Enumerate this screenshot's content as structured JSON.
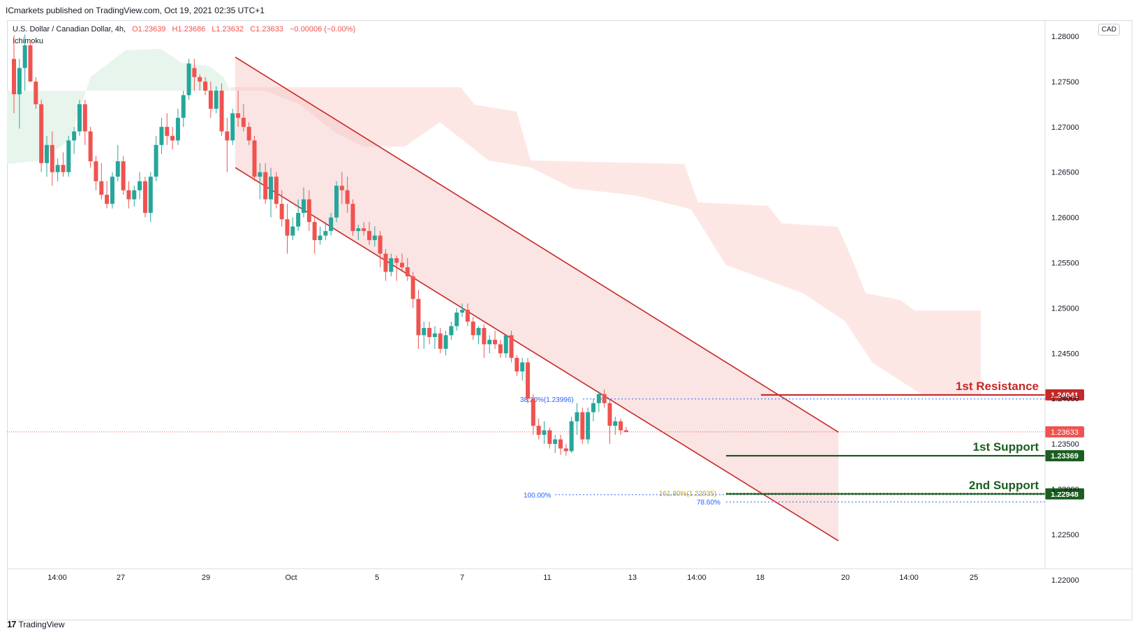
{
  "header": {
    "published": "ICmarkets published on TradingView.com, Oct 19, 2021 02:35 UTC+1"
  },
  "legend": {
    "symbol": "U.S. Dollar / Canadian Dollar, 4h,",
    "open": "O1.23639",
    "high": "H1.23686",
    "low": "L1.23632",
    "close": "C1.23633",
    "change": "−0.00006 (−0.00%)",
    "indicator": "Ichimoku"
  },
  "currency": "CAD",
  "footer": {
    "brand": "TradingView",
    "logo": "17"
  },
  "colors": {
    "bull": "#26a69a",
    "bear": "#ef5350",
    "channel": "#c62828",
    "channel_fill": "#f3c3c3",
    "cloud_bear": "#fde3e1",
    "cloud_bull": "#e6f4ea",
    "resistance": "#c62828",
    "support": "#1b5e20",
    "fib_blue": "#2962ff",
    "fib_gold": "#c49b00",
    "price_line": "#ef5350"
  },
  "chart_data": {
    "type": "candlestick",
    "timeframe": "4h",
    "ylim": [
      1.22,
      1.28
    ],
    "y_ticks": [
      "1.28000",
      "1.27500",
      "1.27000",
      "1.26500",
      "1.26000",
      "1.25500",
      "1.25000",
      "1.24500",
      "1.24000",
      "1.23500",
      "1.23000",
      "1.22500",
      "1.22000"
    ],
    "x_ticks": [
      "14:00",
      "27",
      "29",
      "Oct",
      "5",
      "7",
      "11",
      "13",
      "14:00",
      "18",
      "20",
      "14:00",
      "25"
    ],
    "grid": false,
    "candles": [
      [
        1.2775,
        1.2801,
        1.2715,
        1.2736
      ],
      [
        1.2736,
        1.2775,
        1.2698,
        1.2765
      ],
      [
        1.2765,
        1.2802,
        1.274,
        1.279
      ],
      [
        1.279,
        1.2795,
        1.275,
        1.275
      ],
      [
        1.275,
        1.2755,
        1.272,
        1.2725
      ],
      [
        1.2725,
        1.273,
        1.265,
        1.266
      ],
      [
        1.266,
        1.269,
        1.2645,
        1.268
      ],
      [
        1.268,
        1.2695,
        1.2635,
        1.265
      ],
      [
        1.265,
        1.2665,
        1.264,
        1.2658
      ],
      [
        1.2658,
        1.2672,
        1.2645,
        1.265
      ],
      [
        1.265,
        1.269,
        1.2645,
        1.2685
      ],
      [
        1.2685,
        1.27,
        1.267,
        1.2695
      ],
      [
        1.2695,
        1.273,
        1.269,
        1.2725
      ],
      [
        1.2725,
        1.273,
        1.268,
        1.2695
      ],
      [
        1.2695,
        1.27,
        1.2655,
        1.2662
      ],
      [
        1.2662,
        1.2668,
        1.263,
        1.264
      ],
      [
        1.264,
        1.266,
        1.262,
        1.2625
      ],
      [
        1.2625,
        1.264,
        1.261,
        1.2615
      ],
      [
        1.2615,
        1.265,
        1.261,
        1.2645
      ],
      [
        1.2645,
        1.268,
        1.264,
        1.2662
      ],
      [
        1.2662,
        1.2668,
        1.2625,
        1.263
      ],
      [
        1.263,
        1.264,
        1.261,
        1.262
      ],
      [
        1.262,
        1.2635,
        1.2612,
        1.263
      ],
      [
        1.263,
        1.265,
        1.262,
        1.264
      ],
      [
        1.264,
        1.2645,
        1.26,
        1.2605
      ],
      [
        1.2605,
        1.265,
        1.2595,
        1.2645
      ],
      [
        1.2645,
        1.269,
        1.264,
        1.268
      ],
      [
        1.268,
        1.271,
        1.267,
        1.27
      ],
      [
        1.27,
        1.2715,
        1.268,
        1.269
      ],
      [
        1.269,
        1.27,
        1.2675,
        1.2685
      ],
      [
        1.2685,
        1.272,
        1.268,
        1.271
      ],
      [
        1.271,
        1.274,
        1.27,
        1.2735
      ],
      [
        1.2735,
        1.2775,
        1.273,
        1.277
      ],
      [
        1.2765,
        1.2775,
        1.274,
        1.2755
      ],
      [
        1.2755,
        1.2758,
        1.274,
        1.275
      ],
      [
        1.275,
        1.2755,
        1.2735,
        1.274
      ],
      [
        1.274,
        1.275,
        1.271,
        1.272
      ],
      [
        1.272,
        1.2745,
        1.2715,
        1.274
      ],
      [
        1.274,
        1.2748,
        1.269,
        1.2695
      ],
      [
        1.2695,
        1.271,
        1.265,
        1.2685
      ],
      [
        1.2685,
        1.272,
        1.268,
        1.2715
      ],
      [
        1.2715,
        1.274,
        1.27,
        1.271
      ],
      [
        1.271,
        1.2725,
        1.2695,
        1.27
      ],
      [
        1.27,
        1.2705,
        1.268,
        1.2685
      ],
      [
        1.2685,
        1.269,
        1.264,
        1.2645
      ],
      [
        1.2645,
        1.266,
        1.262,
        1.265
      ],
      [
        1.265,
        1.266,
        1.2615,
        1.262
      ],
      [
        1.262,
        1.2655,
        1.26,
        1.2645
      ],
      [
        1.2645,
        1.265,
        1.261,
        1.2615
      ],
      [
        1.2615,
        1.263,
        1.259,
        1.2598
      ],
      [
        1.2598,
        1.2615,
        1.256,
        1.258
      ],
      [
        1.258,
        1.26,
        1.2575,
        1.259
      ],
      [
        1.259,
        1.262,
        1.2585,
        1.2605
      ],
      [
        1.2605,
        1.2633,
        1.26,
        1.262
      ],
      [
        1.262,
        1.263,
        1.2585,
        1.2595
      ],
      [
        1.2595,
        1.26,
        1.256,
        1.2575
      ],
      [
        1.2575,
        1.259,
        1.257,
        1.258
      ],
      [
        1.258,
        1.2595,
        1.2575,
        1.2585
      ],
      [
        1.2585,
        1.2605,
        1.258,
        1.26
      ],
      [
        1.26,
        1.264,
        1.2595,
        1.2635
      ],
      [
        1.2635,
        1.265,
        1.2615,
        1.263
      ],
      [
        1.263,
        1.2645,
        1.2605,
        1.2615
      ],
      [
        1.2615,
        1.262,
        1.258,
        1.2585
      ],
      [
        1.2585,
        1.2592,
        1.2575,
        1.2588
      ],
      [
        1.2588,
        1.2595,
        1.258,
        1.2585
      ],
      [
        1.2585,
        1.2595,
        1.257,
        1.2575
      ],
      [
        1.2575,
        1.259,
        1.2568,
        1.258
      ],
      [
        1.258,
        1.2585,
        1.2545,
        1.256
      ],
      [
        1.256,
        1.2565,
        1.253,
        1.254
      ],
      [
        1.254,
        1.256,
        1.2535,
        1.2555
      ],
      [
        1.2555,
        1.2558,
        1.253,
        1.255
      ],
      [
        1.255,
        1.256,
        1.254,
        1.2545
      ],
      [
        1.2545,
        1.2555,
        1.253,
        1.2535
      ],
      [
        1.2535,
        1.254,
        1.25,
        1.251
      ],
      [
        1.251,
        1.252,
        1.2455,
        1.247
      ],
      [
        1.247,
        1.2485,
        1.2455,
        1.2478
      ],
      [
        1.2478,
        1.2485,
        1.246,
        1.2468
      ],
      [
        1.2468,
        1.248,
        1.2455,
        1.2472
      ],
      [
        1.2472,
        1.2478,
        1.245,
        1.2455
      ],
      [
        1.2455,
        1.2475,
        1.2448,
        1.247
      ],
      [
        1.247,
        1.2485,
        1.2465,
        1.248
      ],
      [
        1.248,
        1.25,
        1.2475,
        1.2495
      ],
      [
        1.2495,
        1.2505,
        1.249,
        1.2498
      ],
      [
        1.2498,
        1.2505,
        1.248,
        1.2485
      ],
      [
        1.2485,
        1.249,
        1.2465,
        1.247
      ],
      [
        1.247,
        1.248,
        1.246,
        1.2478
      ],
      [
        1.2478,
        1.2482,
        1.2445,
        1.246
      ],
      [
        1.246,
        1.247,
        1.245,
        1.2465
      ],
      [
        1.2465,
        1.2475,
        1.2455,
        1.246
      ],
      [
        1.246,
        1.2465,
        1.2445,
        1.245
      ],
      [
        1.245,
        1.247,
        1.2445,
        1.247
      ],
      [
        1.247,
        1.2475,
        1.244,
        1.2445
      ],
      [
        1.2445,
        1.2448,
        1.2425,
        1.243
      ],
      [
        1.243,
        1.2445,
        1.242,
        1.244
      ],
      [
        1.244,
        1.2445,
        1.2395,
        1.24
      ],
      [
        1.24,
        1.2405,
        1.236,
        1.237
      ],
      [
        1.237,
        1.2378,
        1.2355,
        1.236
      ],
      [
        1.236,
        1.2375,
        1.235,
        1.2365
      ],
      [
        1.2365,
        1.2368,
        1.2345,
        1.235
      ],
      [
        1.235,
        1.236,
        1.234,
        1.2355
      ],
      [
        1.2355,
        1.236,
        1.2338,
        1.2345
      ],
      [
        1.2345,
        1.235,
        1.2337,
        1.2342
      ],
      [
        1.2342,
        1.238,
        1.234,
        1.2375
      ],
      [
        1.2375,
        1.2395,
        1.236,
        1.2385
      ],
      [
        1.2385,
        1.239,
        1.235,
        1.2355
      ],
      [
        1.2355,
        1.239,
        1.235,
        1.2385
      ],
      [
        1.2385,
        1.24,
        1.2375,
        1.2395
      ],
      [
        1.2395,
        1.2408,
        1.2385,
        1.2405
      ],
      [
        1.2405,
        1.241,
        1.239,
        1.2395
      ],
      [
        1.2395,
        1.2398,
        1.235,
        1.237
      ],
      [
        1.237,
        1.238,
        1.236,
        1.2375
      ],
      [
        1.2375,
        1.2378,
        1.236,
        1.2365
      ],
      [
        1.2365,
        1.2369,
        1.2363,
        1.2363
      ]
    ],
    "cloud": {
      "bull_segment_label": "green kumo (before Sep 29)",
      "bear_segment_label": "red kumo (after Sep 29)"
    },
    "channel": {
      "upper": [
        [
          "Sep 29",
          1.2777
        ],
        [
          "Oct 20",
          1.2363
        ]
      ],
      "lower": [
        [
          "Sep 29",
          1.2655
        ],
        [
          "Oct 20",
          1.2243
        ]
      ]
    },
    "levels": [
      {
        "name": "1st Resistance",
        "value": 1.24041,
        "label": "1.24041",
        "kind": "resistance"
      },
      {
        "name": "1st Support",
        "value": 1.23369,
        "label": "1.23369",
        "kind": "support"
      },
      {
        "name": "2nd Support",
        "value": 1.22948,
        "label": "1.22948",
        "kind": "support"
      }
    ],
    "current_price": {
      "value": 1.23633,
      "label": "1.23633"
    },
    "fibs": [
      {
        "label": "38.20%(1.23996)",
        "value": 1.23996,
        "color": "blue"
      },
      {
        "label": "100.00%",
        "value": 1.2294,
        "color": "blue"
      },
      {
        "label": "161.80%(1.22935)",
        "value": 1.22935,
        "color": "gold"
      },
      {
        "label": "78.60%",
        "value": 1.2286,
        "color": "blue"
      }
    ]
  }
}
